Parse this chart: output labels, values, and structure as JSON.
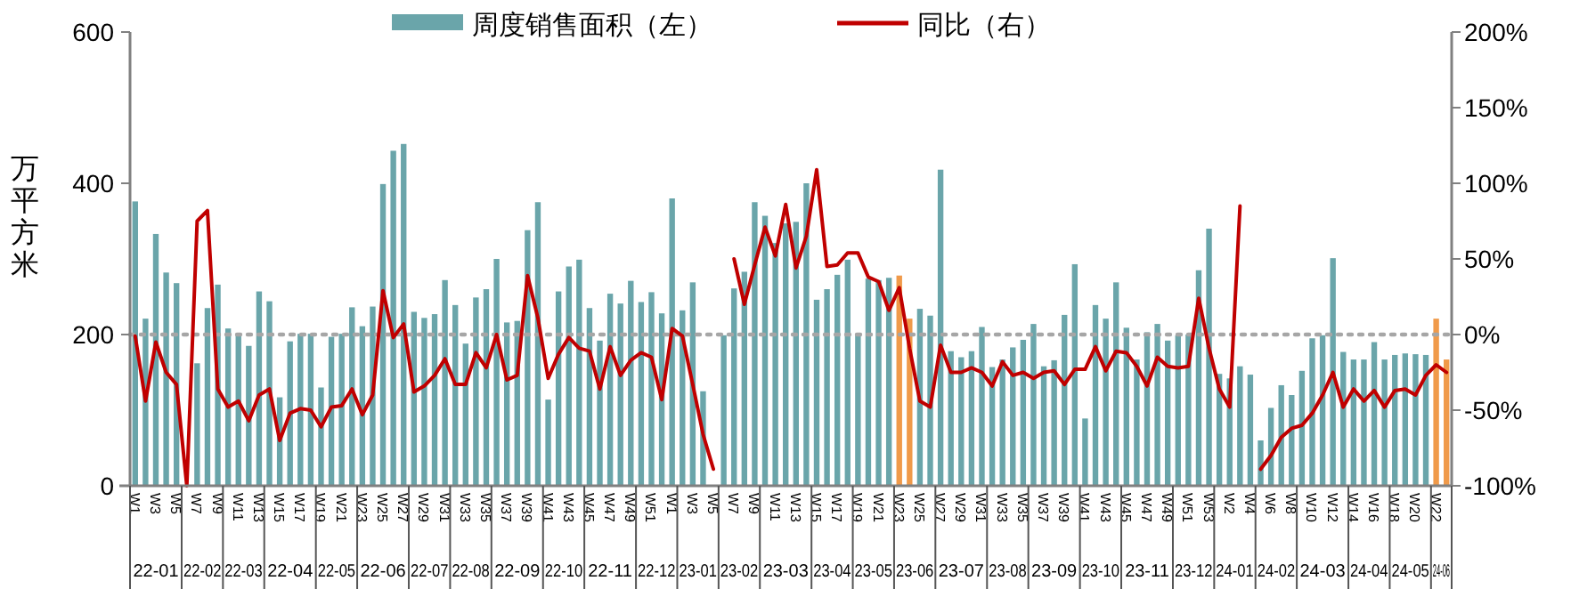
{
  "chart_data": {
    "type": "bar",
    "ylabel": "万平方米",
    "legend": "top",
    "categories": [
      "W1",
      null,
      "W3",
      null,
      "W5",
      null,
      "W7",
      null,
      "W9",
      null,
      "W11",
      null,
      "W13",
      null,
      "W15",
      null,
      "W17",
      null,
      "W19",
      null,
      "W21",
      null,
      "W23",
      null,
      "W25",
      null,
      "W27",
      null,
      "W29",
      null,
      "W31",
      null,
      "W33",
      null,
      "W35",
      null,
      "W37",
      null,
      "W39",
      null,
      "W41",
      null,
      "W43",
      null,
      "W45",
      null,
      "W47",
      null,
      "W49",
      null,
      "W51",
      null,
      "W1",
      null,
      "W3",
      null,
      "W5",
      null,
      "W7",
      null,
      "W9",
      null,
      "W11",
      null,
      "W13",
      null,
      "W15",
      null,
      "W17",
      null,
      "W19",
      null,
      "W21",
      null,
      "W23",
      null,
      "W25",
      null,
      "W27",
      null,
      "W29",
      null,
      "W31",
      null,
      "W33",
      null,
      "W35",
      null,
      "W37",
      null,
      "W39",
      null,
      "W41",
      null,
      "W43",
      null,
      "W45",
      null,
      "W47",
      null,
      "W49",
      null,
      "W51",
      null,
      "W53",
      null,
      "W2",
      null,
      "W4",
      null,
      "W6",
      null,
      "W8",
      null,
      "W10",
      null,
      "W12",
      null,
      "W14",
      null,
      "W16",
      null,
      "W18",
      null,
      "W20",
      null,
      "W22",
      null
    ],
    "ylim": [
      0,
      600
    ],
    "yticks": [
      0,
      200,
      400,
      600
    ],
    "y2lim": [
      -100,
      200
    ],
    "y2ticks": [
      {
        "value": -100,
        "label": "-100%"
      },
      {
        "value": -50,
        "label": "-50%"
      },
      {
        "value": 0,
        "label": "0%"
      },
      {
        "value": 50,
        "label": "50%"
      },
      {
        "value": 100,
        "label": "100%"
      },
      {
        "value": 150,
        "label": "150%"
      },
      {
        "value": 200,
        "label": "200%"
      }
    ],
    "ref_lines": [
      {
        "axis": "y2",
        "value": 0,
        "color": "#a6a6a6",
        "line_style": "dotted"
      }
    ],
    "series": [
      {
        "name": "周度销售面积（左）",
        "color": "#6aa5aa",
        "colors": [
          "#6aa5aa",
          "#6aa5aa",
          "#6aa5aa",
          "#6aa5aa",
          "#6aa5aa",
          "#6aa5aa",
          "#6aa5aa",
          "#6aa5aa",
          "#6aa5aa",
          "#6aa5aa",
          "#6aa5aa",
          "#6aa5aa",
          "#6aa5aa",
          "#6aa5aa",
          "#6aa5aa",
          "#6aa5aa",
          "#6aa5aa",
          "#6aa5aa",
          "#6aa5aa",
          "#6aa5aa",
          "#6aa5aa",
          "#6aa5aa",
          "#6aa5aa",
          "#6aa5aa",
          "#6aa5aa",
          "#6aa5aa",
          "#6aa5aa",
          "#6aa5aa",
          "#6aa5aa",
          "#6aa5aa",
          "#6aa5aa",
          "#6aa5aa",
          "#6aa5aa",
          "#6aa5aa",
          "#6aa5aa",
          "#6aa5aa",
          "#6aa5aa",
          "#6aa5aa",
          "#6aa5aa",
          "#6aa5aa",
          "#6aa5aa",
          "#6aa5aa",
          "#6aa5aa",
          "#6aa5aa",
          "#6aa5aa",
          "#6aa5aa",
          "#6aa5aa",
          "#6aa5aa",
          "#6aa5aa",
          "#6aa5aa",
          "#6aa5aa",
          "#6aa5aa",
          "#6aa5aa",
          "#6aa5aa",
          "#6aa5aa",
          "#6aa5aa",
          "#6aa5aa",
          "#6aa5aa",
          "#6aa5aa",
          "#6aa5aa",
          "#6aa5aa",
          "#6aa5aa",
          "#6aa5aa",
          "#6aa5aa",
          "#6aa5aa",
          "#6aa5aa",
          "#6aa5aa",
          "#6aa5aa",
          "#6aa5aa",
          "#6aa5aa",
          "#6aa5aa",
          "#6aa5aa",
          "#6aa5aa",
          "#6aa5aa",
          "#f09a4a",
          "#f09a4a",
          "#6aa5aa",
          "#6aa5aa",
          "#6aa5aa",
          "#6aa5aa",
          "#6aa5aa",
          "#6aa5aa",
          "#6aa5aa",
          "#6aa5aa",
          "#6aa5aa",
          "#6aa5aa",
          "#6aa5aa",
          "#6aa5aa",
          "#6aa5aa",
          "#6aa5aa",
          "#6aa5aa",
          "#6aa5aa",
          "#6aa5aa",
          "#6aa5aa",
          "#6aa5aa",
          "#6aa5aa",
          "#6aa5aa",
          "#6aa5aa",
          "#6aa5aa",
          "#6aa5aa",
          "#6aa5aa",
          "#6aa5aa",
          "#6aa5aa",
          "#6aa5aa",
          "#6aa5aa",
          "#6aa5aa",
          "#6aa5aa",
          "#6aa5aa",
          "#6aa5aa",
          "#6aa5aa",
          "#6aa5aa",
          "#6aa5aa",
          "#6aa5aa",
          "#6aa5aa",
          "#6aa5aa",
          "#6aa5aa",
          "#6aa5aa",
          "#6aa5aa",
          "#6aa5aa",
          "#6aa5aa",
          "#6aa5aa",
          "#6aa5aa",
          "#6aa5aa",
          "#6aa5aa",
          "#6aa5aa",
          "#6aa5aa",
          "#f09a4a",
          "#f09a4a"
        ],
        "values": [
          376,
          221,
          333,
          282,
          268,
          null,
          162,
          235,
          266,
          208,
          201,
          185,
          257,
          244,
          117,
          191,
          201,
          201,
          130,
          197,
          201,
          236,
          211,
          237,
          399,
          443,
          452,
          230,
          222,
          227,
          272,
          239,
          188,
          249,
          260,
          300,
          216,
          218,
          338,
          375,
          114,
          257,
          290,
          299,
          235,
          192,
          254,
          241,
          271,
          243,
          256,
          228,
          380,
          232,
          269,
          125,
          null,
          199,
          261,
          283,
          375,
          357,
          321,
          347,
          349,
          400,
          246,
          260,
          279,
          299,
          201,
          274,
          272,
          275,
          278,
          221,
          234,
          225,
          418,
          178,
          170,
          178,
          210,
          157,
          167,
          183,
          193,
          214,
          158,
          166,
          226,
          293,
          89,
          239,
          221,
          269,
          209,
          167,
          203,
          214,
          192,
          199,
          200,
          285,
          340,
          148,
          142,
          158,
          147,
          60,
          103,
          133,
          120,
          152,
          195,
          199,
          301,
          177,
          167,
          167,
          190,
          167,
          173,
          175,
          174,
          173,
          221,
          167
        ]
      },
      {
        "name": "同比（右）",
        "type": "line",
        "axis": "y2",
        "color": "#c00000",
        "values": [
          -1,
          -44,
          -5,
          -25,
          -33,
          -100,
          75,
          82,
          -36,
          -48,
          -44,
          -57,
          -40,
          -36,
          -70,
          -52,
          -49,
          -50,
          -61,
          -48,
          -47,
          -36,
          -53,
          -40,
          29,
          -2,
          7,
          -38,
          -34,
          -27,
          -16,
          -33,
          -33,
          -12,
          -22,
          0,
          -30,
          -27,
          39,
          11,
          -29,
          -13,
          -2,
          -9,
          -11,
          -36,
          -8,
          -27,
          -17,
          -12,
          -15,
          -43,
          4,
          -1,
          -33,
          -66,
          -89,
          null,
          50,
          20,
          46,
          71,
          52,
          86,
          44,
          65,
          109,
          45,
          46,
          54,
          54,
          38,
          35,
          16,
          31,
          -9,
          -44,
          -48,
          -7,
          -25,
          -25,
          -22,
          -25,
          -34,
          -18,
          -27,
          -25,
          -29,
          -25,
          -24,
          -33,
          -23,
          -23,
          -8,
          -24,
          -11,
          -12,
          -21,
          -34,
          -15,
          -21,
          -22,
          -21,
          24,
          -9,
          -36,
          -48,
          85,
          null,
          -89,
          -80,
          -68,
          -62,
          -60,
          -52,
          -40,
          -25,
          -48,
          -36,
          -44,
          -37,
          -48,
          -37,
          -36,
          -40,
          -27,
          -20,
          -25
        ]
      }
    ],
    "annotations": [
      "22-01",
      "22-02",
      "22-03",
      "22-04",
      "22-05",
      "22-06",
      "22-07",
      "22-08",
      "22-09",
      "22-10",
      "22-11",
      "22-12",
      "23-01",
      "23-02",
      "23-03",
      "23-04",
      "23-05",
      "23-06",
      "23-07",
      "23-08",
      "23-09",
      "23-10",
      "23-11",
      "23-12",
      "24-01",
      "24-02",
      "24-03",
      "24-04",
      "24-05",
      "24-06"
    ]
  }
}
